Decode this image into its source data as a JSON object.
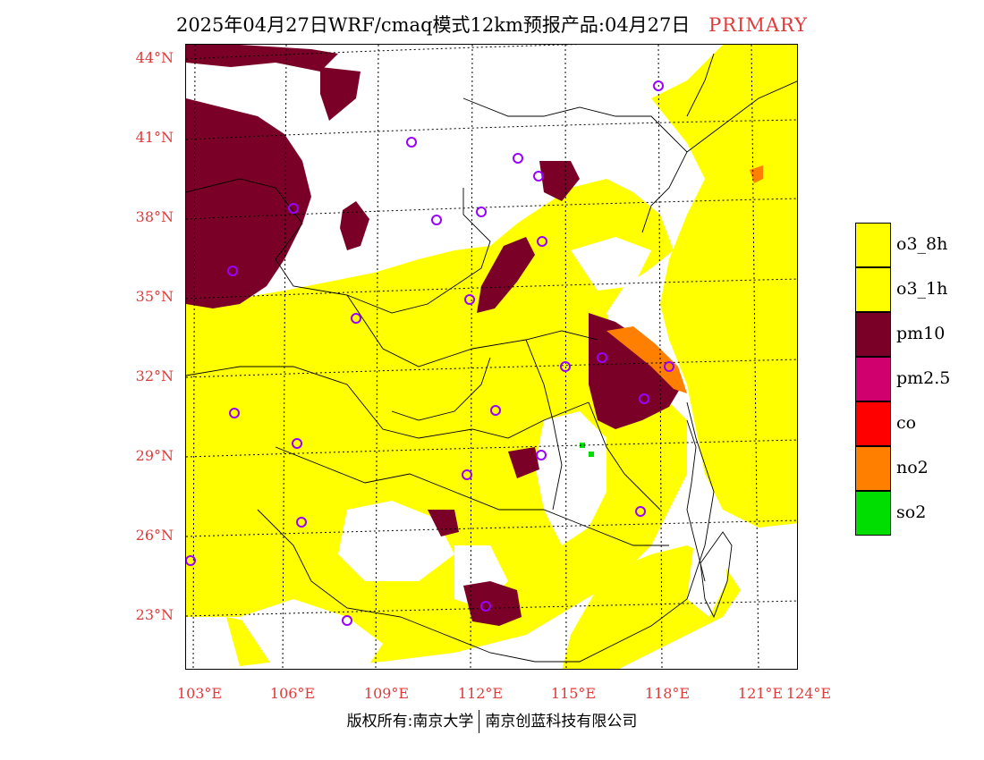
{
  "title": {
    "text": "2025年04月27日WRF/cmaq模式12km预报产品:04月27日",
    "tag": "PRIMARY"
  },
  "latitudes": [
    "44°N",
    "41°N",
    "38°N",
    "35°N",
    "32°N",
    "29°N",
    "26°N",
    "23°N"
  ],
  "longitudes": [
    "103°E",
    "106°E",
    "109°E",
    "112°E",
    "115°E",
    "118°E",
    "121°E",
    "124°E"
  ],
  "legend": [
    {
      "label": "o3_8h",
      "color": "#ffff00"
    },
    {
      "label": "o3_1h",
      "color": "#ffff00"
    },
    {
      "label": "pm10",
      "color": "#7a0028"
    },
    {
      "label": "pm2.5",
      "color": "#d1006f"
    },
    {
      "label": "co",
      "color": "#ff0000"
    },
    {
      "label": "no2",
      "color": "#ff7f00"
    },
    {
      "label": "so2",
      "color": "#00dd00"
    }
  ],
  "footer": {
    "left": "版权所有:南京大学",
    "right": "南京创蓝科技有限公司"
  },
  "colors": {
    "o3": "#ffff00",
    "pm10": "#7a0028",
    "no2": "#ff7f00",
    "so2": "#00dd00",
    "station": "#9900ff",
    "axis_label": "#e03a3a"
  }
}
